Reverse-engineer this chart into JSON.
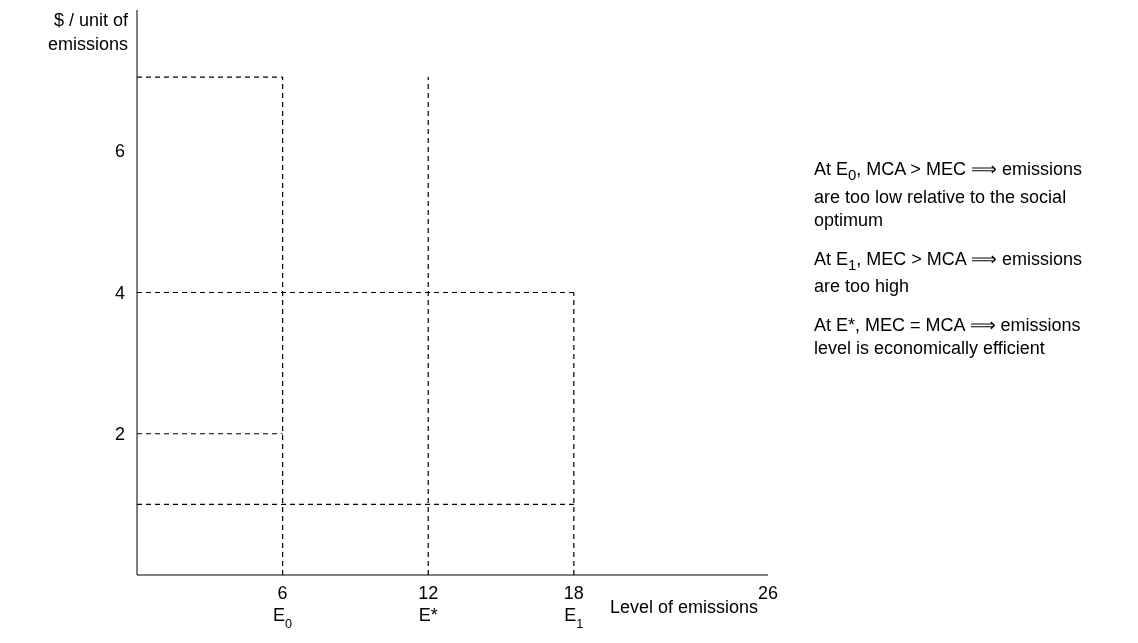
{
  "chart_data": {
    "type": "line",
    "ylabel": "$ / unit of emissions",
    "xlabel": "Level of emissions",
    "xlim": [
      0,
      26
    ],
    "xticks": [
      {
        "value": 6,
        "label": "6\nE$_{0}$"
      },
      {
        "value": 12,
        "label": "12\nE*"
      },
      {
        "value": 18,
        "label": "18\nE$_{1}$"
      },
      26
    ],
    "ylim": [
      0,
      8
    ],
    "yticks": [
      2,
      4,
      6
    ],
    "grid": false,
    "marker": "none",
    "line_style": "dashed",
    "series": [
      {
        "color": "#000000",
        "x": [
          0,
          6
        ],
        "values": [
          7.05,
          7.05
        ]
      },
      {
        "color": "#000000",
        "x": [
          6,
          6
        ],
        "values": [
          0,
          7.05
        ]
      },
      {
        "color": "#000000",
        "x": [
          12,
          12
        ],
        "values": [
          0,
          7.05
        ]
      },
      {
        "color": "#000000",
        "x": [
          0,
          18
        ],
        "values": [
          4,
          4
        ]
      },
      {
        "color": "#000000",
        "x": [
          18,
          18
        ],
        "values": [
          0,
          4
        ]
      },
      {
        "color": "#000000",
        "x": [
          0,
          6
        ],
        "values": [
          2,
          2
        ]
      },
      {
        "color": "#000000",
        "x": [
          0,
          18
        ],
        "values": [
          1,
          1
        ]
      }
    ],
    "annotations": [
      "At E$_{0}$, MCA > MEC ⟹ emissions are too low relative to the social optimum",
      "At E$_{1}$, MEC > MCA ⟹ emissions are too high",
      "At E*, MEC = MCA ⟹ emissions level is economically efficient"
    ]
  }
}
